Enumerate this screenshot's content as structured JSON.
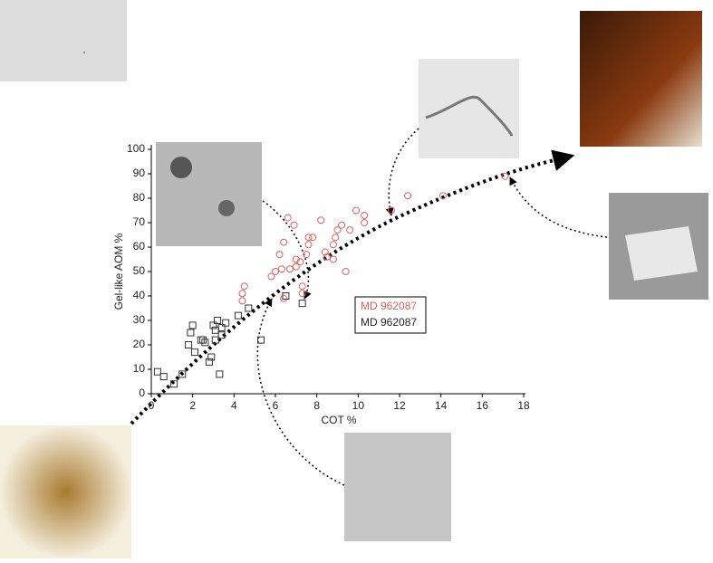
{
  "chart_data": {
    "type": "scatter",
    "xlabel": "COT %",
    "ylabel": "Gel-like AOM %",
    "xlim": [
      0,
      18
    ],
    "xticks": [
      0,
      2,
      4,
      6,
      8,
      10,
      12,
      14,
      16,
      18
    ],
    "ylim": [
      0,
      100
    ],
    "yticks": [
      0,
      10,
      20,
      30,
      40,
      50,
      60,
      70,
      80,
      90,
      100
    ],
    "series": [
      {
        "name": "MD 962087",
        "color": "#e06060",
        "marker": "circle",
        "x": [
          4.4,
          4.4,
          4.5,
          5.8,
          6.0,
          6.3,
          6.2,
          6.4,
          6.6,
          6.7,
          6.9,
          7.0,
          7.2,
          7.0,
          7.3,
          7.3,
          7.5,
          7.6,
          7.6,
          7.8,
          8.2,
          8.4,
          8.5,
          8.8,
          8.8,
          8.9,
          9.0,
          9.2,
          9.4,
          9.6,
          9.9,
          10.3,
          10.3,
          11.6,
          12.4,
          14.1,
          17.1,
          6.4
        ],
        "values": [
          38,
          41,
          44,
          48,
          50,
          51,
          57,
          62,
          72,
          51,
          69,
          52,
          54,
          55,
          41,
          44,
          57,
          61,
          64,
          64,
          71,
          58,
          56,
          55,
          61,
          64,
          67,
          69,
          50,
          67,
          75,
          73,
          70,
          75,
          81,
          81,
          89,
          39
        ]
      },
      {
        "name": "MD 962087",
        "color": "#333333",
        "marker": "square",
        "x": [
          0.3,
          0.6,
          1.1,
          1.5,
          1.8,
          1.9,
          2.0,
          2.1,
          2.4,
          2.5,
          2.6,
          2.8,
          2.9,
          3.0,
          3.1,
          3.2,
          3.3,
          3.4,
          3.4,
          3.6,
          4.2,
          4.7,
          5.3,
          7.3,
          6.5,
          3.1
        ],
        "values": [
          9,
          7,
          4,
          8,
          20,
          25,
          28,
          17,
          22,
          22,
          21,
          13,
          15,
          28,
          26,
          30,
          8,
          27,
          24,
          29,
          32,
          35,
          22,
          37,
          40,
          22
        ]
      }
    ]
  }
}
